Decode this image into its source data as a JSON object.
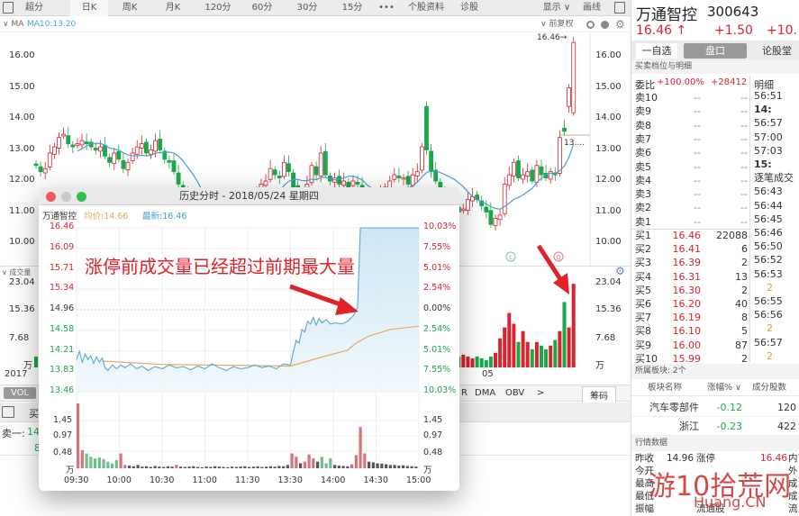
{
  "toolbar": {
    "items": [
      "超分",
      "日K",
      "周K",
      "月K",
      "120分",
      "60分",
      "30分",
      "15分",
      "•••",
      "个股资料",
      "诊股"
    ],
    "selected": "日K",
    "display_label": "显示 ∨",
    "draw_label": "画线"
  },
  "ma_row": {
    "toggle": "∨ MA",
    "ma10": "MA10:13.20",
    "adjust": "∨ 前复权"
  },
  "main_chart": {
    "type": "candlestick",
    "y_ticks": [
      "16.00",
      "15.00",
      "14.00",
      "13.00",
      "12.00",
      "11.00",
      "10.00"
    ],
    "ylim": [
      10,
      16
    ],
    "max_label": "16.46→",
    "last_ma_label": "13....",
    "closes": [
      12.5,
      12.3,
      12.4,
      12.9,
      13.1,
      13.4,
      13.5,
      13.2,
      13.1,
      13.2,
      13.3,
      13.2,
      13.1,
      13.0,
      13.1,
      12.8,
      12.6,
      12.9,
      12.7,
      12.4,
      12.6,
      12.9,
      13.1,
      13.2,
      12.9,
      13.0,
      13.3,
      13.0,
      12.7,
      12.6,
      12.3,
      11.9,
      11.6,
      11.2,
      10.9,
      10.7,
      10.5,
      10.3,
      10.2,
      10.4,
      10.5,
      10.3,
      10.4,
      10.6,
      10.8,
      11.0,
      11.2,
      11.5,
      11.7,
      11.9,
      12.0,
      12.4,
      12.2,
      12.1,
      12.6,
      12.3,
      11.8,
      11.5,
      11.3,
      11.9,
      12.5,
      12.2,
      12.9,
      12.2,
      12.0,
      12.1,
      11.9,
      12.0,
      11.8,
      12.0,
      11.9,
      11.6,
      11.3,
      11.2,
      11.4,
      11.6,
      11.8,
      12.0,
      12.2,
      12.1,
      12.1,
      11.9,
      12.2,
      12.3,
      13.1,
      [
        14.4,
        13.0
      ],
      12.3,
      12.0,
      11.7,
      11.5,
      11.3,
      11.2,
      11.0,
      11.1,
      11.4,
      11.5,
      11.4,
      11.2,
      11.0,
      10.6,
      10.8,
      10.9,
      11.9,
      12.2,
      12.6,
      12.1,
      12.2,
      12.3,
      12.0,
      12.5,
      12.2,
      12.1,
      12.3,
      12.2,
      13.4,
      [
        13.7,
        13.6
      ],
      [
        14.4,
        15.0
      ],
      [
        14.2,
        16.46
      ]
    ],
    "markers": [
      "L",
      "Q"
    ],
    "up_color": "#d9232e",
    "down_color": "#1aa84a",
    "ma_color": "#4a9fd0"
  },
  "volume_panel": {
    "title": "∨ 成交量",
    "y_ticks": [
      "23.04",
      "15.36",
      "7.68",
      "万"
    ],
    "ymax": 23.04,
    "year_label": "2017",
    "month_label": "05",
    "volumes": [
      4,
      3,
      3,
      5,
      6,
      5,
      4,
      3,
      3,
      4,
      4,
      3,
      3,
      3,
      4,
      5,
      4,
      4,
      3,
      4,
      3,
      4,
      4,
      3,
      3,
      3,
      4,
      4,
      3,
      4,
      5,
      6,
      5,
      6,
      5,
      4,
      4,
      3,
      3,
      3,
      4,
      3,
      3,
      3,
      4,
      4,
      5,
      5,
      4,
      4,
      5,
      6,
      4,
      4,
      5,
      4,
      5,
      4,
      4,
      5,
      8,
      5,
      7,
      5,
      4,
      3,
      3,
      3,
      3,
      3,
      3,
      4,
      4,
      3,
      3,
      3,
      3,
      4,
      4,
      3,
      3,
      3,
      4,
      4,
      9,
      12,
      8,
      6,
      5,
      4,
      4,
      3,
      4,
      3,
      3.5,
      3,
      2.5,
      3,
      2.5,
      2,
      3,
      4,
      8,
      11,
      15,
      12,
      7,
      10,
      7,
      5,
      7,
      6,
      5,
      6,
      7.5,
      10,
      18,
      11,
      23
    ],
    "tabs": [
      "VOL",
      "R",
      "DMA",
      "OBV",
      ">"
    ],
    "chips_button": "筹码"
  },
  "order_strip": {
    "buy_label": "买",
    "sell1_label": "卖一:",
    "sell1_value": "14.",
    "row2_value": "8"
  },
  "annotation": {
    "text": "涨停前成交量已经超过前期最大量",
    "color": "#e0222a"
  },
  "popup": {
    "title": "历史分时 - 2018/05/24 星期四",
    "stock": "万通智控",
    "avg_label": "均价:14.66",
    "last_label": "最新:16.46",
    "left_ticks": [
      "16.46",
      "16.09",
      "15.71",
      "15.34",
      "14.96",
      "14.58",
      "14.21",
      "13.83",
      "13.46"
    ],
    "right_ticks": [
      "10.03%",
      "7.55%",
      "5.01%",
      "2.54%",
      "0.00%",
      "2.54%",
      "5.01%",
      "7.55%",
      "10.03%"
    ],
    "vol_ticks": [
      "1.45",
      "0.97",
      "0.48",
      "万"
    ],
    "time_ticks": [
      "09:30",
      "10:00",
      "10:30",
      "11:00",
      "11:30",
      "13:30",
      "14:00",
      "14:30",
      "15:00"
    ],
    "chart_data": {
      "type": "line",
      "x_unit": "minutes since 09:30 (trading time)",
      "ylim": [
        13.46,
        16.46
      ],
      "prev_close": 14.96,
      "price": [
        [
          0,
          14.05
        ],
        [
          2,
          14.2
        ],
        [
          4,
          14.0
        ],
        [
          6,
          14.15
        ],
        [
          8,
          14.05
        ],
        [
          10,
          14.12
        ],
        [
          12,
          13.98
        ],
        [
          14,
          14.1
        ],
        [
          16,
          14.0
        ],
        [
          18,
          14.08
        ],
        [
          20,
          13.9
        ],
        [
          22,
          13.85
        ],
        [
          25,
          13.95
        ],
        [
          28,
          13.88
        ],
        [
          31,
          13.95
        ],
        [
          34,
          13.9
        ],
        [
          38,
          13.97
        ],
        [
          42,
          13.88
        ],
        [
          46,
          13.93
        ],
        [
          50,
          13.85
        ],
        [
          55,
          13.92
        ],
        [
          60,
          13.88
        ],
        [
          65,
          13.95
        ],
        [
          70,
          13.9
        ],
        [
          75,
          13.92
        ],
        [
          80,
          13.86
        ],
        [
          85,
          13.93
        ],
        [
          90,
          13.88
        ],
        [
          95,
          13.97
        ],
        [
          100,
          13.9
        ],
        [
          105,
          13.85
        ],
        [
          110,
          13.92
        ],
        [
          115,
          13.88
        ],
        [
          120,
          13.9
        ],
        [
          125,
          13.95
        ],
        [
          130,
          13.9
        ],
        [
          135,
          13.93
        ],
        [
          140,
          13.88
        ],
        [
          145,
          13.97
        ],
        [
          150,
          13.95
        ],
        [
          152,
          14.2
        ],
        [
          154,
          14.4
        ],
        [
          156,
          14.35
        ],
        [
          158,
          14.6
        ],
        [
          160,
          14.55
        ],
        [
          162,
          14.75
        ],
        [
          164,
          14.7
        ],
        [
          166,
          14.82
        ],
        [
          168,
          14.68
        ],
        [
          170,
          14.8
        ],
        [
          172,
          14.72
        ],
        [
          175,
          14.78
        ],
        [
          178,
          14.7
        ],
        [
          182,
          14.72
        ],
        [
          186,
          14.7
        ],
        [
          190,
          14.75
        ],
        [
          194,
          14.85
        ],
        [
          197,
          15.0
        ],
        [
          199,
          16.46
        ],
        [
          240,
          16.46
        ]
      ],
      "avg": [
        [
          18,
          14.02
        ],
        [
          60,
          13.96
        ],
        [
          150,
          13.93
        ],
        [
          170,
          14.08
        ],
        [
          190,
          14.22
        ],
        [
          196,
          14.35
        ],
        [
          205,
          14.48
        ],
        [
          220,
          14.6
        ],
        [
          240,
          14.66
        ]
      ],
      "volume": [
        2.0,
        0.55,
        0.45,
        0.35,
        0.3,
        0.33,
        0.28,
        0.2,
        0.15,
        0.25,
        0.45,
        0.1,
        0.08,
        0.06,
        0.1,
        0.05,
        0.06,
        0.04,
        0.07,
        0.05,
        0.04,
        0.06,
        0.05,
        0.1,
        0.05,
        0.04,
        0.05,
        0.06,
        0.04,
        0.03,
        0.05,
        0.04,
        0.06,
        0.05,
        0.04,
        0.03,
        0.05,
        0.04,
        0.05,
        0.06,
        0.04,
        0.05,
        0.06,
        0.04,
        0.05,
        0.06,
        0.05,
        0.07,
        0.06,
        0.1,
        0.45,
        0.35,
        0.15,
        0.2,
        0.42,
        0.3,
        0.2,
        0.35,
        0.15,
        0.3,
        0.1,
        0.08,
        0.07,
        0.06,
        0.12,
        0.4,
        1.25,
        0.45,
        0.2,
        0.18,
        0.15,
        0.14,
        0.12,
        0.1,
        0.1,
        0.08,
        0.09,
        0.07,
        0.06,
        0.05
      ],
      "volume_colors": "rrggggggggrrkkkkkkkkkkkrkkkkkkkkkkkkkkkkkkkkkkkkkkrrkrrrkgggkkkkrrrrkkkkkkkkkkkk",
      "line_color": "#5aa9cc",
      "avg_color": "#e3a85b"
    }
  },
  "right": {
    "name": "万通智控",
    "code": "300643",
    "price": "16.46 ↑",
    "change": "+1.50",
    "change_pct": "+10.",
    "tabs": [
      "一自选",
      "盘口",
      "论股堂"
    ],
    "section1": "买卖档位与明细",
    "ratio_label": "委比",
    "ratio_pct": "+100.00%",
    "ratio_diff": "+28412",
    "detail_label": "明细",
    "asks": [
      {
        "label": "卖10",
        "price": "--",
        "vol": "--"
      },
      {
        "label": "卖9",
        "price": "--",
        "vol": "--"
      },
      {
        "label": "卖8",
        "price": "--",
        "vol": "--"
      },
      {
        "label": "卖7",
        "price": "--",
        "vol": "--"
      },
      {
        "label": "卖6",
        "price": "--",
        "vol": "--"
      },
      {
        "label": "卖5",
        "price": "--",
        "vol": "--"
      },
      {
        "label": "卖4",
        "price": "--",
        "vol": "--"
      },
      {
        "label": "卖3",
        "price": "--",
        "vol": "--"
      },
      {
        "label": "卖2",
        "price": "--",
        "vol": "--"
      },
      {
        "label": "卖1",
        "price": "--",
        "vol": "--"
      }
    ],
    "bids": [
      {
        "label": "买1",
        "price": "16.46",
        "vol": "22088"
      },
      {
        "label": "买2",
        "price": "16.41",
        "vol": "6"
      },
      {
        "label": "买3",
        "price": "16.39",
        "vol": "2"
      },
      {
        "label": "买4",
        "price": "16.31",
        "vol": "13"
      },
      {
        "label": "买5",
        "price": "16.30",
        "vol": "2"
      },
      {
        "label": "买6",
        "price": "16.20",
        "vol": "40"
      },
      {
        "label": "买7",
        "price": "16.19",
        "vol": "8"
      },
      {
        "label": "买8",
        "price": "16.10",
        "vol": "5"
      },
      {
        "label": "买9",
        "price": "16.00",
        "vol": "87"
      },
      {
        "label": "买10",
        "price": "15.99",
        "vol": "2"
      }
    ],
    "details": [
      "56:51",
      "14:",
      "56:57",
      "57:00",
      "57:03",
      "15:",
      "逐笔成交",
      "56:43",
      "56:44",
      "56:45",
      "56:46",
      "56:50",
      "56:52",
      "56:53",
      "2",
      "56:55",
      "56:56",
      "2",
      "56:57",
      "2"
    ],
    "sector_title": "所属板块: 2个",
    "sector_headers": [
      "板块名称",
      "涨幅% ∨",
      "成分股数"
    ],
    "sectors": [
      {
        "name": "汽车零部件",
        "pct": "-0.12",
        "count": "120"
      },
      {
        "name": "浙江",
        "pct": "-0.23",
        "count": "422"
      }
    ],
    "quote_title": "行情数据",
    "quotes": [
      {
        "a": "昨收",
        "b": "14.96",
        "c": "涨停",
        "d": "16.46",
        "e": "内"
      },
      {
        "a": "今开",
        "b": "",
        "c": "",
        "d": "",
        "e": "外"
      },
      {
        "a": "最高",
        "b": "",
        "c": "",
        "d": "",
        "e": "成"
      },
      {
        "a": "最低",
        "b": "",
        "c": "",
        "d": "",
        "e": "成"
      },
      {
        "a": "振幅",
        "b": "",
        "c": "流通股",
        "d": "",
        "e": "流"
      }
    ]
  },
  "watermark": {
    "text": "游10拾荒网",
    "sub": "Huang.CN"
  }
}
